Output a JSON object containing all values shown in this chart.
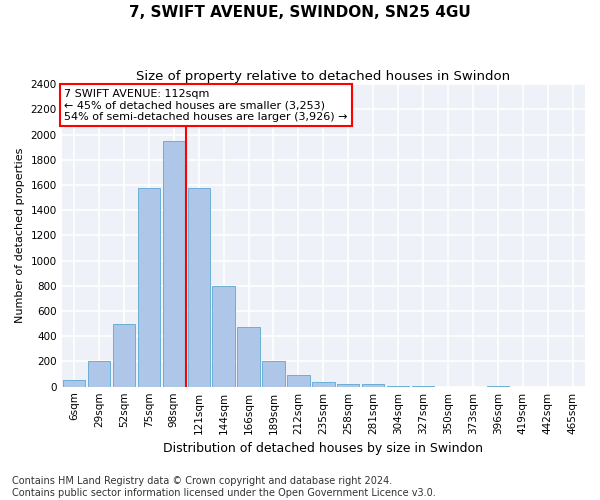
{
  "title": "7, SWIFT AVENUE, SWINDON, SN25 4GU",
  "subtitle": "Size of property relative to detached houses in Swindon",
  "xlabel": "Distribution of detached houses by size in Swindon",
  "ylabel": "Number of detached properties",
  "bin_labels": [
    "6sqm",
    "29sqm",
    "52sqm",
    "75sqm",
    "98sqm",
    "121sqm",
    "144sqm",
    "166sqm",
    "189sqm",
    "212sqm",
    "235sqm",
    "258sqm",
    "281sqm",
    "304sqm",
    "327sqm",
    "350sqm",
    "373sqm",
    "396sqm",
    "419sqm",
    "442sqm",
    "465sqm"
  ],
  "bar_heights": [
    50,
    200,
    500,
    1580,
    1950,
    1580,
    800,
    475,
    200,
    90,
    35,
    25,
    20,
    5,
    5,
    0,
    0,
    5,
    0,
    0,
    0
  ],
  "bar_color": "#aec6e8",
  "bar_edge_color": "#6baed6",
  "vline_x": 4.5,
  "vline_color": "red",
  "annotation_text": "7 SWIFT AVENUE: 112sqm\n← 45% of detached houses are smaller (3,253)\n54% of semi-detached houses are larger (3,926) →",
  "annotation_box_color": "white",
  "annotation_box_edge": "red",
  "ylim": [
    0,
    2400
  ],
  "yticks": [
    0,
    200,
    400,
    600,
    800,
    1000,
    1200,
    1400,
    1600,
    1800,
    2000,
    2200,
    2400
  ],
  "footer_line1": "Contains HM Land Registry data © Crown copyright and database right 2024.",
  "footer_line2": "Contains public sector information licensed under the Open Government Licence v3.0.",
  "bg_color": "#eef2f8",
  "grid_color": "white",
  "title_fontsize": 11,
  "subtitle_fontsize": 9.5,
  "xlabel_fontsize": 9,
  "ylabel_fontsize": 8,
  "tick_fontsize": 7.5,
  "annotation_fontsize": 8,
  "footer_fontsize": 7
}
